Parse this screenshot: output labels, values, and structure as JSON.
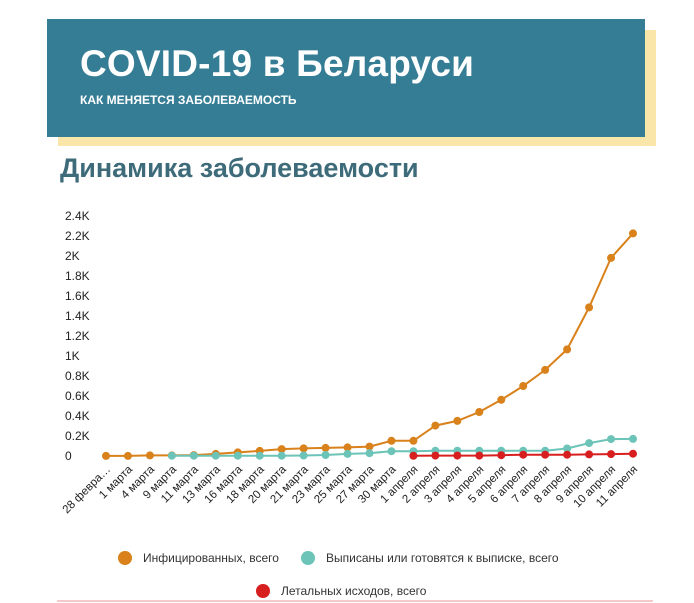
{
  "header": {
    "title": "COVID-19 в Беларуси",
    "subtitle": "КАК МЕНЯЕТСЯ ЗАБОЛЕВАЕМОСТЬ"
  },
  "section_title": "Динамика заболеваемости",
  "colors": {
    "header_bg": "#357d95",
    "header_shadow": "#fbe6a9",
    "title_text": "#3e6b7a",
    "infected": "#d9811a",
    "recovered": "#6cc4b8",
    "deaths": "#d81f1f"
  },
  "chart_data": {
    "type": "line",
    "title": "",
    "xlabel": "",
    "ylabel": "",
    "ylim": [
      0,
      2400
    ],
    "y_ticks": [
      "0",
      "0.2K",
      "0.4K",
      "0.6K",
      "0.8K",
      "1K",
      "1.2K",
      "1.4K",
      "1.6K",
      "1.8K",
      "2K",
      "2.2K",
      "2.4K"
    ],
    "categories": [
      "28 февра…",
      "1 марта",
      "4 марта",
      "9 марта",
      "11 марта",
      "13 марта",
      "16 марта",
      "18 марта",
      "20 марта",
      "21 марта",
      "23 марта",
      "25 марта",
      "27 марта",
      "30 марта",
      "1 апреля",
      "2 апреля",
      "3 апреля",
      "4 апреля",
      "5 апреля",
      "6 апреля",
      "7 апреля",
      "8 апреля",
      "9 апреля",
      "10 апреля",
      "11 апреля"
    ],
    "series": [
      {
        "name": "Инфицированных, всего",
        "color": "#d9811a",
        "values": [
          1,
          1,
          6,
          6,
          9,
          21,
          36,
          51,
          69,
          76,
          81,
          86,
          94,
          152,
          152,
          304,
          351,
          440,
          562,
          700,
          861,
          1066,
          1486,
          1981,
          2226
        ]
      },
      {
        "name": "Выписаны или готовятся к выписке, всего",
        "color": "#6cc4b8",
        "values": [
          null,
          null,
          null,
          3,
          3,
          3,
          3,
          3,
          3,
          5,
          10,
          21,
          28,
          48,
          48,
          53,
          53,
          53,
          53,
          53,
          53,
          75,
          129,
          169,
          171
        ]
      },
      {
        "name": "Летальных исходов, всего",
        "color": "#d81f1f",
        "values": [
          null,
          null,
          null,
          null,
          null,
          null,
          null,
          null,
          null,
          null,
          null,
          null,
          null,
          null,
          2,
          4,
          4,
          4,
          8,
          13,
          13,
          13,
          16,
          19,
          23
        ]
      }
    ],
    "grid": false,
    "legend_position": "bottom"
  }
}
